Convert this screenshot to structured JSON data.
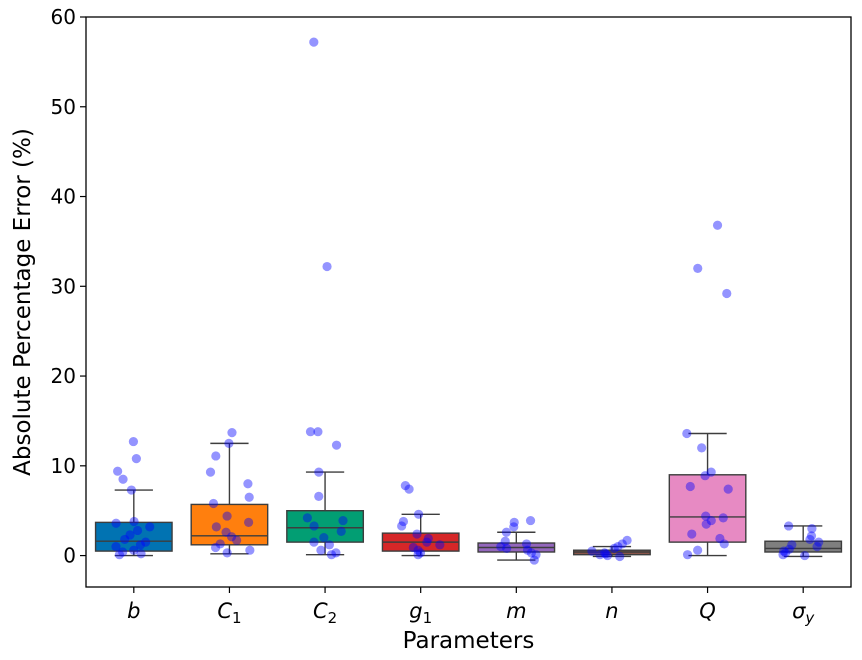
{
  "chart_data": {
    "type": "box",
    "xlabel": "Parameters",
    "ylabel": "Absolute Percentage Error (%)",
    "ylim": [
      -3.5,
      60
    ],
    "yticks": [
      0,
      10,
      20,
      30,
      40,
      50,
      60
    ],
    "ytick_labels": [
      "0",
      "10",
      "20",
      "30",
      "40",
      "50",
      "60"
    ],
    "categories": [
      {
        "name": "b",
        "base": "b",
        "sub": "",
        "color": "#0173b2",
        "q1": 0.5,
        "median": 1.6,
        "q3": 3.7,
        "whisker_low": 0.0,
        "whisker_high": 7.3,
        "points": [
          12.7,
          10.8,
          9.4,
          8.5,
          7.3,
          3.8,
          3.6,
          3.2,
          2.8,
          2.3,
          1.8,
          1.5,
          1.2,
          1.0,
          0.6,
          0.4,
          0.2,
          0.1
        ]
      },
      {
        "name": "C1",
        "base": "C",
        "sub": "1",
        "color": "#ff7f0e",
        "q1": 1.2,
        "median": 2.2,
        "q3": 5.7,
        "whisker_low": 0.2,
        "whisker_high": 12.5,
        "points": [
          13.7,
          12.5,
          11.1,
          9.3,
          8.0,
          6.5,
          5.8,
          4.4,
          3.7,
          3.2,
          2.6,
          2.1,
          1.7,
          1.3,
          0.9,
          0.6,
          0.3
        ]
      },
      {
        "name": "C2",
        "base": "C",
        "sub": "2",
        "color": "#029e73",
        "q1": 1.5,
        "median": 3.1,
        "q3": 5.0,
        "whisker_low": 0.1,
        "whisker_high": 9.3,
        "points": [
          57.2,
          32.2,
          13.8,
          13.8,
          12.3,
          9.3,
          6.6,
          4.2,
          3.9,
          3.3,
          2.7,
          2.0,
          1.5,
          1.2,
          0.6,
          0.3,
          0.1
        ]
      },
      {
        "name": "g1",
        "base": "g",
        "sub": "1",
        "color": "#d62728",
        "q1": 0.5,
        "median": 1.5,
        "q3": 2.5,
        "whisker_low": 0.0,
        "whisker_high": 4.6,
        "points": [
          7.8,
          7.4,
          4.6,
          3.8,
          3.3,
          2.4,
          1.9,
          1.5,
          1.2,
          0.9,
          0.6,
          0.3,
          0.1
        ]
      },
      {
        "name": "m",
        "base": "m",
        "sub": "",
        "color": "#9467bd",
        "q1": 0.4,
        "median": 0.9,
        "q3": 1.4,
        "whisker_low": -0.5,
        "whisker_high": 2.6,
        "points": [
          3.9,
          3.7,
          3.2,
          2.6,
          1.6,
          1.3,
          1.0,
          0.8,
          0.6,
          0.3,
          0.1,
          -0.5
        ]
      },
      {
        "name": "n",
        "base": "n",
        "sub": "",
        "color": "#8c564b",
        "q1": 0.1,
        "median": 0.4,
        "q3": 0.6,
        "whisker_low": -0.1,
        "whisker_high": 1.0,
        "points": [
          1.7,
          1.3,
          1.0,
          0.8,
          0.5,
          0.3,
          0.2,
          0.1,
          0.0,
          -0.1
        ]
      },
      {
        "name": "Q",
        "base": "Q",
        "sub": "",
        "color": "#e78ac3",
        "q1": 1.5,
        "median": 4.3,
        "q3": 9.0,
        "whisker_low": 0.0,
        "whisker_high": 13.6,
        "points": [
          36.8,
          32.0,
          29.2,
          13.6,
          12.0,
          9.3,
          8.9,
          7.7,
          7.4,
          4.4,
          4.2,
          3.9,
          3.5,
          2.4,
          1.9,
          1.3,
          0.6,
          0.1
        ]
      },
      {
        "name": "sigma_y",
        "base": "σ",
        "sub": "y",
        "color": "#7f7f7f",
        "q1": 0.4,
        "median": 0.8,
        "q3": 1.6,
        "whisker_low": -0.1,
        "whisker_high": 3.3,
        "points": [
          3.3,
          3.0,
          2.2,
          1.8,
          1.5,
          1.2,
          1.0,
          0.7,
          0.5,
          0.3,
          0.1,
          0.0
        ]
      }
    ],
    "point_color": "#0000ff",
    "grid": false
  }
}
